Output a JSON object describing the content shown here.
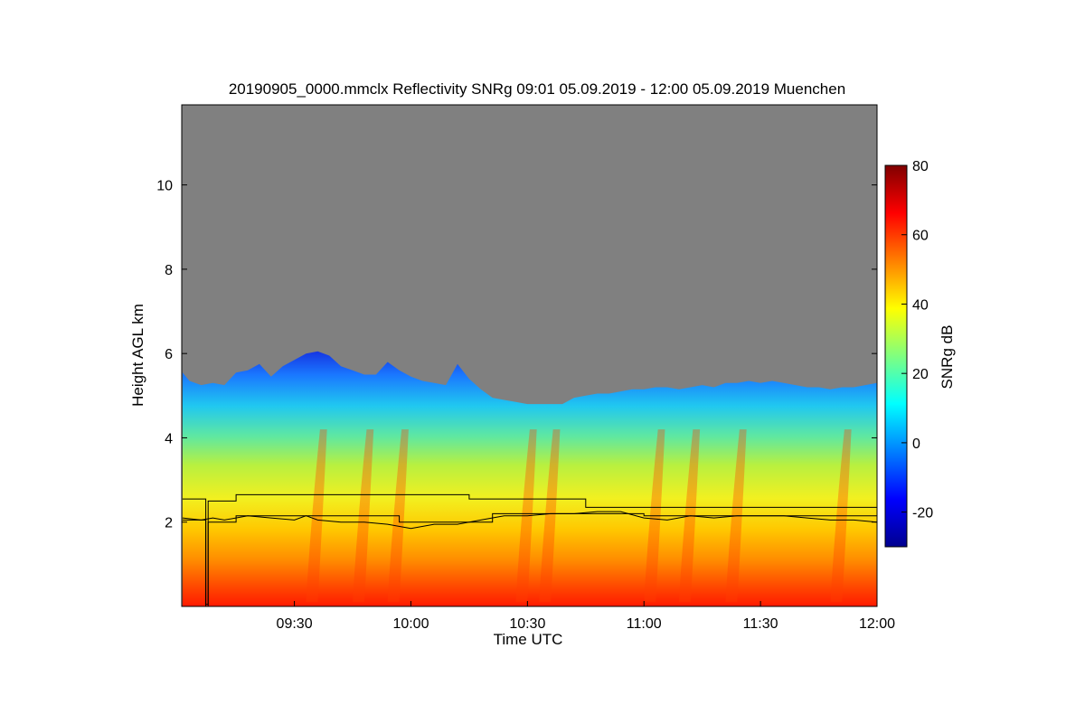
{
  "chart_data": {
    "type": "heatmap",
    "title": "20190905_0000.mmclx Reflectivity SNRg   09:01 05.09.2019 - 12:00 05.09.2019 Muenchen",
    "xlabel": "Time UTC",
    "ylabel": "Height AGL km",
    "x_ticks": [
      "09:30",
      "10:00",
      "10:30",
      "11:00",
      "11:30",
      "12:00"
    ],
    "x_tick_values": [
      9.5,
      10.0,
      10.5,
      11.0,
      11.5,
      12.0
    ],
    "xlim": [
      9.0167,
      12.0
    ],
    "y_ticks": [
      "2",
      "4",
      "6",
      "8",
      "10"
    ],
    "y_tick_values": [
      2,
      4,
      6,
      8,
      10
    ],
    "ylim": [
      0.0,
      11.9
    ],
    "colorbar": {
      "label": "SNRg dB",
      "ticks": [
        "-20",
        "0",
        "20",
        "40",
        "60",
        "80"
      ],
      "tick_values": [
        -20,
        0,
        20,
        40,
        60,
        80
      ],
      "range": [
        -30,
        80
      ],
      "colormap": "jet"
    },
    "background_color": "#808080",
    "series": [
      {
        "values": [
          [
            9.02,
            5.55
          ],
          [
            9.05,
            5.35
          ],
          [
            9.1,
            5.25
          ],
          [
            9.15,
            5.3
          ],
          [
            9.2,
            5.25
          ],
          [
            9.25,
            5.55
          ],
          [
            9.3,
            5.6
          ],
          [
            9.35,
            5.75
          ],
          [
            9.4,
            5.45
          ],
          [
            9.45,
            5.7
          ],
          [
            9.5,
            5.85
          ],
          [
            9.55,
            6.0
          ],
          [
            9.6,
            6.05
          ],
          [
            9.65,
            5.95
          ],
          [
            9.7,
            5.7
          ],
          [
            9.75,
            5.6
          ],
          [
            9.8,
            5.5
          ],
          [
            9.85,
            5.5
          ],
          [
            9.9,
            5.8
          ],
          [
            9.95,
            5.6
          ],
          [
            10.0,
            5.45
          ],
          [
            10.05,
            5.35
          ],
          [
            10.1,
            5.3
          ],
          [
            10.15,
            5.25
          ],
          [
            10.2,
            5.75
          ],
          [
            10.25,
            5.4
          ],
          [
            10.3,
            5.15
          ],
          [
            10.35,
            4.95
          ],
          [
            10.4,
            4.9
          ],
          [
            10.45,
            4.85
          ],
          [
            10.5,
            4.8
          ],
          [
            10.55,
            4.8
          ],
          [
            10.6,
            4.8
          ],
          [
            10.65,
            4.8
          ],
          [
            10.7,
            4.95
          ],
          [
            10.75,
            5.0
          ],
          [
            10.8,
            5.05
          ],
          [
            10.85,
            5.05
          ],
          [
            10.9,
            5.1
          ],
          [
            10.95,
            5.15
          ],
          [
            11.0,
            5.15
          ],
          [
            11.05,
            5.2
          ],
          [
            11.1,
            5.2
          ],
          [
            11.15,
            5.15
          ],
          [
            11.2,
            5.2
          ],
          [
            11.25,
            5.25
          ],
          [
            11.3,
            5.2
          ],
          [
            11.35,
            5.3
          ],
          [
            11.4,
            5.3
          ],
          [
            11.45,
            5.35
          ],
          [
            11.5,
            5.3
          ],
          [
            11.55,
            5.35
          ],
          [
            11.6,
            5.3
          ],
          [
            11.65,
            5.25
          ],
          [
            11.7,
            5.2
          ],
          [
            11.75,
            5.2
          ],
          [
            11.8,
            5.15
          ],
          [
            11.85,
            5.2
          ],
          [
            11.9,
            5.2
          ],
          [
            11.95,
            5.25
          ],
          [
            12.0,
            5.3
          ]
        ]
      },
      {
        "values": [
          [
            9.02,
            2.1
          ],
          [
            9.1,
            2.05
          ],
          [
            9.15,
            2.1
          ],
          [
            9.2,
            2.05
          ],
          [
            9.3,
            2.15
          ],
          [
            9.4,
            2.1
          ],
          [
            9.5,
            2.05
          ],
          [
            9.55,
            2.15
          ],
          [
            9.6,
            2.05
          ],
          [
            9.7,
            2.0
          ],
          [
            9.8,
            2.0
          ],
          [
            9.9,
            1.95
          ],
          [
            10.0,
            1.85
          ],
          [
            10.1,
            1.95
          ],
          [
            10.2,
            1.95
          ],
          [
            10.3,
            2.05
          ],
          [
            10.4,
            2.15
          ],
          [
            10.5,
            2.15
          ],
          [
            10.6,
            2.2
          ],
          [
            10.7,
            2.2
          ],
          [
            10.8,
            2.25
          ],
          [
            10.9,
            2.25
          ],
          [
            11.0,
            2.1
          ],
          [
            11.1,
            2.05
          ],
          [
            11.2,
            2.15
          ],
          [
            11.3,
            2.1
          ],
          [
            11.4,
            2.15
          ],
          [
            11.5,
            2.15
          ],
          [
            11.6,
            2.15
          ],
          [
            11.7,
            2.1
          ],
          [
            11.8,
            2.05
          ],
          [
            11.9,
            2.05
          ],
          [
            12.0,
            2.0
          ]
        ]
      },
      {
        "values": [
          [
            9.02,
            2.55
          ],
          [
            9.12,
            2.55
          ],
          [
            9.12,
            0.05
          ],
          [
            9.13,
            0.05
          ],
          [
            9.13,
            2.5
          ],
          [
            9.25,
            2.5
          ],
          [
            9.25,
            2.65
          ],
          [
            10.25,
            2.65
          ],
          [
            10.25,
            2.55
          ],
          [
            10.75,
            2.55
          ],
          [
            10.75,
            2.35
          ],
          [
            12.0,
            2.35
          ]
        ]
      },
      {
        "values": [
          [
            9.02,
            2.05
          ],
          [
            9.12,
            2.05
          ],
          [
            9.12,
            0.0
          ],
          [
            9.13,
            0.0
          ],
          [
            9.13,
            2.0
          ],
          [
            9.25,
            2.0
          ],
          [
            9.25,
            2.15
          ],
          [
            9.95,
            2.15
          ],
          [
            9.95,
            2.0
          ],
          [
            10.35,
            2.0
          ],
          [
            10.35,
            2.2
          ],
          [
            11.0,
            2.2
          ],
          [
            11.0,
            2.15
          ],
          [
            12.0,
            2.15
          ]
        ]
      }
    ]
  }
}
